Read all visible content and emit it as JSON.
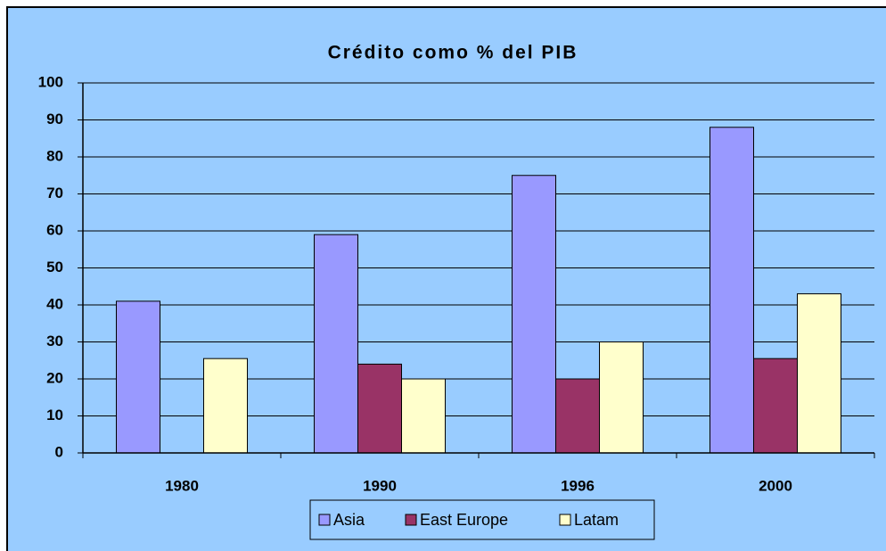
{
  "chart_data": {
    "type": "bar",
    "title": "Crédito como % del PIB",
    "categories": [
      "1980",
      "1990",
      "1996",
      "2000"
    ],
    "series": [
      {
        "name": "Asia",
        "color": "#9999ff",
        "values": [
          41,
          59,
          75,
          88
        ]
      },
      {
        "name": "East Europe",
        "color": "#993366",
        "values": [
          null,
          24,
          20,
          25.5
        ]
      },
      {
        "name": "Latam",
        "color": "#ffffcc",
        "values": [
          25.5,
          20,
          30,
          43
        ]
      }
    ],
    "ylim": [
      0,
      100
    ],
    "yticks": [
      0,
      10,
      20,
      30,
      40,
      50,
      60,
      70,
      80,
      90,
      100
    ],
    "grid": true,
    "legend": "bottom"
  }
}
